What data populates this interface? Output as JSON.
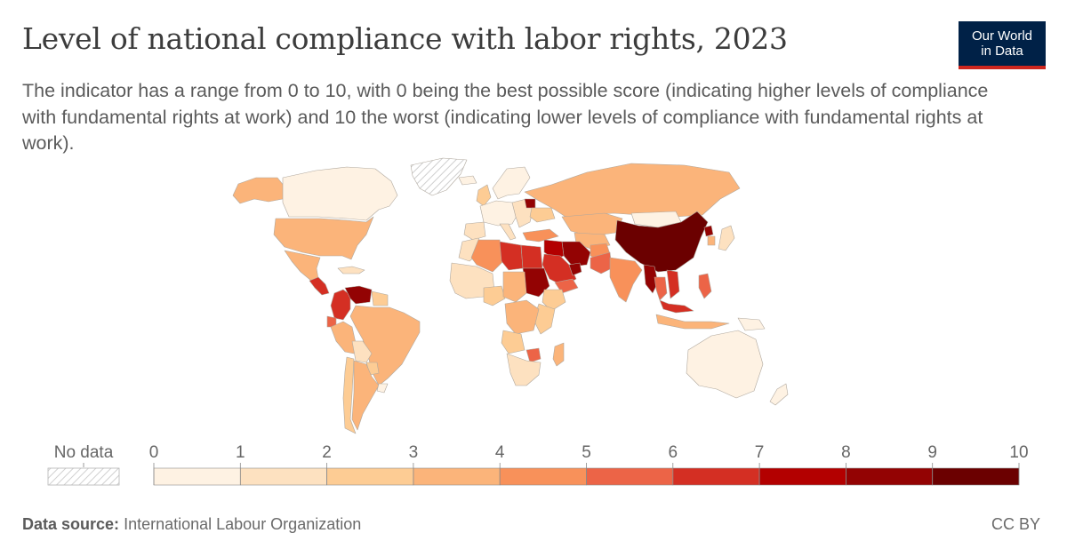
{
  "header": {
    "title": "Level of national compliance with labor rights, 2023",
    "subtitle": "The indicator has a range from 0 to 10, with 0 being the best possible score (indicating higher levels of compliance with fundamental rights at work) and 10 the worst (indicating lower levels of compliance with fundamental rights at work)."
  },
  "logo": {
    "line1": "Our World",
    "line2": "in Data",
    "bg": "#002147",
    "accent": "#ce261e"
  },
  "legend": {
    "no_data_label": "No data",
    "ticks": [
      "0",
      "1",
      "2",
      "3",
      "4",
      "5",
      "6",
      "7",
      "8",
      "9",
      "10"
    ],
    "bins": [
      {
        "min": 0,
        "max": 1,
        "color": "#fef2e3"
      },
      {
        "min": 1,
        "max": 2,
        "color": "#fde1c0"
      },
      {
        "min": 2,
        "max": 3,
        "color": "#fdcc94"
      },
      {
        "min": 3,
        "max": 4,
        "color": "#fbb47a"
      },
      {
        "min": 4,
        "max": 5,
        "color": "#f8915a"
      },
      {
        "min": 5,
        "max": 6,
        "color": "#ec6447"
      },
      {
        "min": 6,
        "max": 7,
        "color": "#d42f23"
      },
      {
        "min": 7,
        "max": 8,
        "color": "#b30000"
      },
      {
        "min": 8,
        "max": 9,
        "color": "#930303"
      },
      {
        "min": 9,
        "max": 10,
        "color": "#6b0000"
      }
    ]
  },
  "regions": [
    {
      "id": "alaska",
      "color": "#fbb47a"
    },
    {
      "id": "canada",
      "color": "#fef2e3"
    },
    {
      "id": "greenland",
      "color": "nodata"
    },
    {
      "id": "usa",
      "color": "#fbb47a"
    },
    {
      "id": "mexico",
      "color": "#fbb47a"
    },
    {
      "id": "central-america",
      "color": "#d42f23"
    },
    {
      "id": "caribbean",
      "color": "#fde1c0"
    },
    {
      "id": "colombia",
      "color": "#d42f23"
    },
    {
      "id": "venezuela",
      "color": "#930303"
    },
    {
      "id": "guianas",
      "color": "#fdcc94"
    },
    {
      "id": "brazil",
      "color": "#fbb47a"
    },
    {
      "id": "ecuador",
      "color": "#ec6447"
    },
    {
      "id": "peru",
      "color": "#fbb47a"
    },
    {
      "id": "bolivia",
      "color": "#fde1c0"
    },
    {
      "id": "paraguay",
      "color": "#fdcc94"
    },
    {
      "id": "chile",
      "color": "#fdcc94"
    },
    {
      "id": "argentina",
      "color": "#fbb47a"
    },
    {
      "id": "uruguay",
      "color": "#fef2e3"
    },
    {
      "id": "iceland",
      "color": "#fef2e3"
    },
    {
      "id": "uk",
      "color": "#fdcc94"
    },
    {
      "id": "scandinavia",
      "color": "#fef2e3"
    },
    {
      "id": "west-europe",
      "color": "#fef2e3"
    },
    {
      "id": "iberia",
      "color": "#fde1c0"
    },
    {
      "id": "italy",
      "color": "#fde1c0"
    },
    {
      "id": "east-europe",
      "color": "#fde1c0"
    },
    {
      "id": "belarus",
      "color": "#930303"
    },
    {
      "id": "ukraine",
      "color": "#fdcc94"
    },
    {
      "id": "turkey",
      "color": "#f8915a"
    },
    {
      "id": "russia",
      "color": "#fbb47a"
    },
    {
      "id": "kazakhstan",
      "color": "#fbb47a"
    },
    {
      "id": "mongolia",
      "color": "#fef2e3"
    },
    {
      "id": "china",
      "color": "#6b0000"
    },
    {
      "id": "korea",
      "color": "#fbb47a"
    },
    {
      "id": "north-korea",
      "color": "#930303"
    },
    {
      "id": "japan",
      "color": "#fde1c0"
    },
    {
      "id": "central-asia",
      "color": "#fbb47a"
    },
    {
      "id": "iran",
      "color": "#930303"
    },
    {
      "id": "iraq-syria",
      "color": "#b30000"
    },
    {
      "id": "afghanistan",
      "color": "#f8915a"
    },
    {
      "id": "pakistan",
      "color": "#ec6447"
    },
    {
      "id": "india",
      "color": "#f8915a"
    },
    {
      "id": "myanmar",
      "color": "#930303"
    },
    {
      "id": "thailand",
      "color": "#ec6447"
    },
    {
      "id": "vietnam",
      "color": "#d42f23"
    },
    {
      "id": "malaysia",
      "color": "#d42f23"
    },
    {
      "id": "philippines",
      "color": "#ec6447"
    },
    {
      "id": "indonesia",
      "color": "#fbb47a"
    },
    {
      "id": "png",
      "color": "#fef2e3"
    },
    {
      "id": "australia",
      "color": "#fef2e3"
    },
    {
      "id": "new-zealand",
      "color": "#fef2e3"
    },
    {
      "id": "saudi-arabia",
      "color": "#d42f23"
    },
    {
      "id": "gulf",
      "color": "#930303"
    },
    {
      "id": "yemen",
      "color": "#ec6447"
    },
    {
      "id": "morocco",
      "color": "#fde1c0"
    },
    {
      "id": "algeria",
      "color": "#f8915a"
    },
    {
      "id": "libya",
      "color": "#d42f23"
    },
    {
      "id": "egypt",
      "color": "#d42f23"
    },
    {
      "id": "sudan",
      "color": "#930303"
    },
    {
      "id": "west-africa",
      "color": "#fde1c0"
    },
    {
      "id": "nigeria",
      "color": "#fdcc94"
    },
    {
      "id": "central-africa",
      "color": "#fbb47a"
    },
    {
      "id": "ethiopia",
      "color": "#fdcc94"
    },
    {
      "id": "east-africa",
      "color": "#fdcc94"
    },
    {
      "id": "drc",
      "color": "#fbb47a"
    },
    {
      "id": "angola",
      "color": "#fdcc94"
    },
    {
      "id": "zimbabwe",
      "color": "#ec6447"
    },
    {
      "id": "southern-africa",
      "color": "#fde1c0"
    },
    {
      "id": "madagascar",
      "color": "#fbb47a"
    }
  ],
  "footer": {
    "source_label": "Data source:",
    "source": "International Labour Organization",
    "license": "CC BY"
  }
}
